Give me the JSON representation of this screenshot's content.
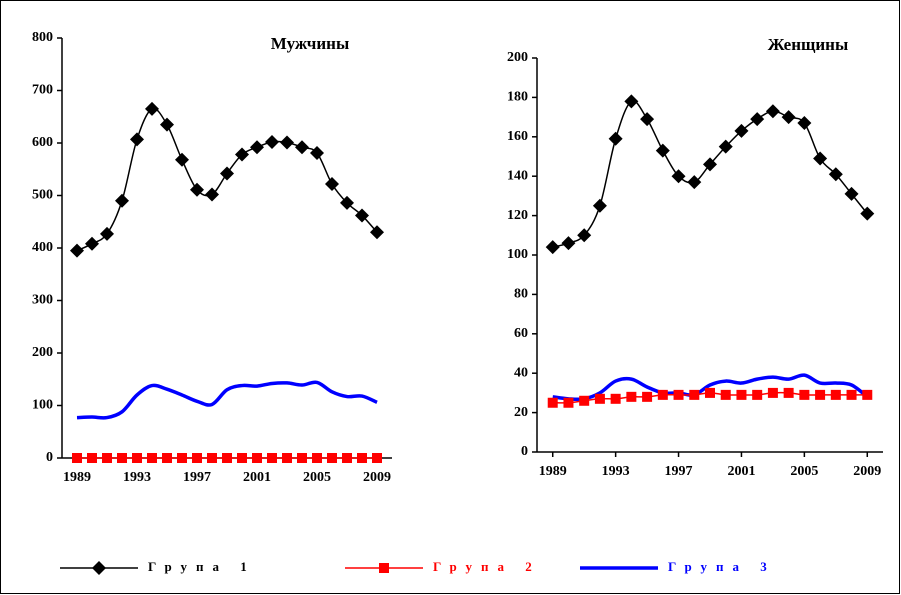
{
  "chart_data": [
    {
      "type": "line",
      "title": "Мужчины",
      "x": [
        1989,
        1990,
        1991,
        1992,
        1993,
        1994,
        1995,
        1996,
        1997,
        1998,
        1999,
        2000,
        2001,
        2002,
        2003,
        2004,
        2005,
        2006,
        2007,
        2008,
        2009
      ],
      "xlim": [
        1988,
        2010
      ],
      "xticks": [
        1989,
        1993,
        1997,
        2001,
        2005,
        2009
      ],
      "ylim": [
        0,
        800
      ],
      "yticks": [
        0,
        100,
        200,
        300,
        400,
        500,
        600,
        700,
        800
      ],
      "series": [
        {
          "name": "Група 1",
          "color": "#000000",
          "marker": "diamond",
          "values": [
            395,
            408,
            427,
            490,
            607,
            665,
            635,
            568,
            511,
            502,
            542,
            578,
            592,
            602,
            601,
            592,
            581,
            522,
            486,
            462,
            430
          ]
        },
        {
          "name": "Група 2",
          "color": "#ff0000",
          "marker": "square",
          "values": [
            0,
            0,
            0,
            0,
            0,
            0,
            0,
            0,
            0,
            0,
            0,
            0,
            0,
            0,
            0,
            0,
            0,
            0,
            0,
            0,
            0
          ]
        },
        {
          "name": "Група 3",
          "color": "#0000ff",
          "marker": "none",
          "values": [
            77,
            78,
            77,
            88,
            120,
            138,
            131,
            120,
            108,
            102,
            130,
            138,
            137,
            142,
            143,
            139,
            144,
            126,
            117,
            118,
            106
          ]
        }
      ]
    },
    {
      "type": "line",
      "title": "Женщины",
      "x": [
        1989,
        1990,
        1991,
        1992,
        1993,
        1994,
        1995,
        1996,
        1997,
        1998,
        1999,
        2000,
        2001,
        2002,
        2003,
        2004,
        2005,
        2006,
        2007,
        2008,
        2009
      ],
      "xlim": [
        1988,
        2010
      ],
      "xticks": [
        1989,
        1993,
        1997,
        2001,
        2005,
        2009
      ],
      "ylim": [
        0,
        200
      ],
      "yticks": [
        0,
        20,
        40,
        60,
        80,
        100,
        120,
        140,
        160,
        180,
        200
      ],
      "series": [
        {
          "name": "Група 1",
          "color": "#000000",
          "marker": "diamond",
          "values": [
            104,
            106,
            110,
            125,
            159,
            178,
            169,
            153,
            140,
            137,
            146,
            155,
            163,
            169,
            173,
            170,
            167,
            149,
            141,
            131,
            121
          ]
        },
        {
          "name": "Група 2",
          "color": "#ff0000",
          "marker": "square",
          "values": [
            25,
            25,
            26,
            27,
            27,
            28,
            28,
            29,
            29,
            29,
            30,
            29,
            29,
            29,
            30,
            30,
            29,
            29,
            29,
            29,
            29
          ]
        },
        {
          "name": "Група 3",
          "color": "#0000ff",
          "marker": "none",
          "values": [
            28,
            27,
            27,
            30,
            36,
            37,
            33,
            30,
            30,
            29,
            34,
            36,
            35,
            37,
            38,
            37,
            39,
            35,
            35,
            34,
            28
          ]
        }
      ]
    }
  ]
}
